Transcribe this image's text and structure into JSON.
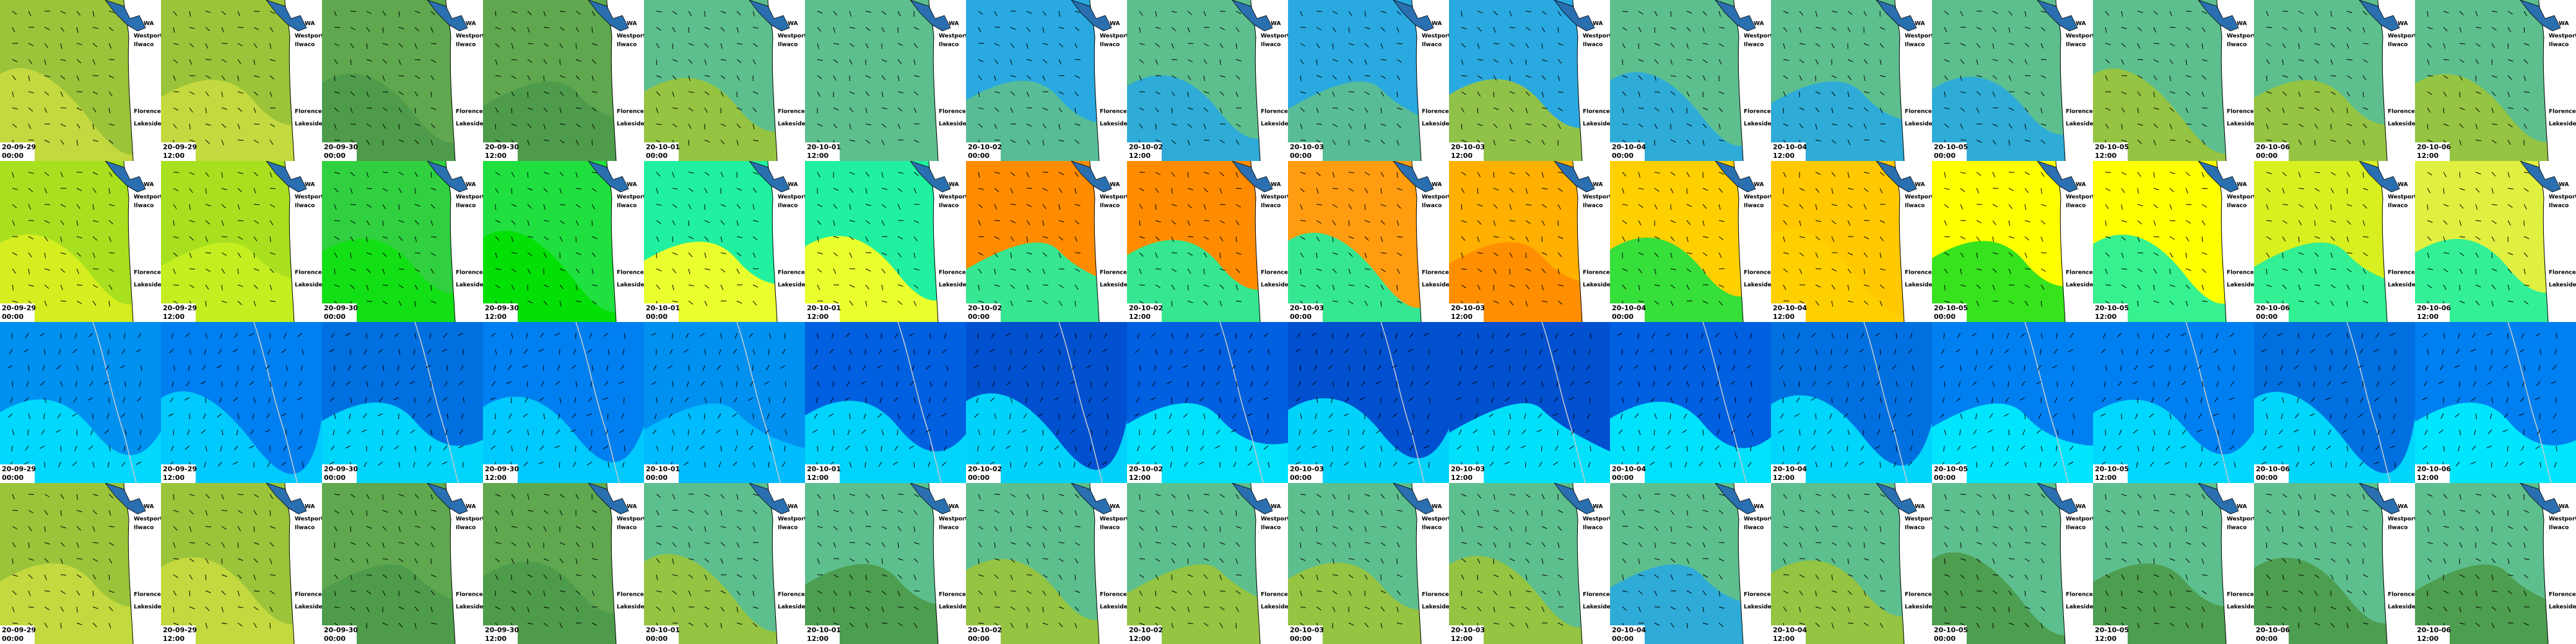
{
  "grid": {
    "places": [
      "WA",
      "Westport",
      "Ilwaco",
      "Florence",
      "Lakeside"
    ],
    "rows": [
      [
        {
          "date": "20-09-29",
          "time": "00:00"
        },
        {
          "date": "20-09-29",
          "time": "12:00"
        },
        {
          "date": "20-09-30",
          "time": "00:00"
        },
        {
          "date": "20-09-30",
          "time": "12:00"
        },
        {
          "date": "20-10-01",
          "time": "00:00"
        },
        {
          "date": "20-10-01",
          "time": "12:00"
        },
        {
          "date": "20-10-02",
          "time": "00:00"
        },
        {
          "date": "20-10-02",
          "time": "12:00"
        },
        {
          "date": "20-10-03",
          "time": "00:00"
        },
        {
          "date": "20-10-03",
          "time": "12:00"
        },
        {
          "date": "20-10-04",
          "time": "00:00"
        },
        {
          "date": "20-10-04",
          "time": "12:00"
        },
        {
          "date": "20-10-05",
          "time": "00:00"
        },
        {
          "date": "20-10-05",
          "time": "12:00"
        },
        {
          "date": "20-10-06",
          "time": "00:00"
        },
        {
          "date": "20-10-06",
          "time": "12:00"
        }
      ],
      [
        {
          "date": "20-09-29",
          "time": "00:00"
        },
        {
          "date": "20-09-29",
          "time": "12:00"
        },
        {
          "date": "20-09-30",
          "time": "00:00"
        },
        {
          "date": "20-09-30",
          "time": "12:00"
        },
        {
          "date": "20-10-01",
          "time": "00:00"
        },
        {
          "date": "20-10-01",
          "time": "12:00"
        },
        {
          "date": "20-10-02",
          "time": "00:00"
        },
        {
          "date": "20-10-02",
          "time": "12:00"
        },
        {
          "date": "20-10-03",
          "time": "00:00"
        },
        {
          "date": "20-10-03",
          "time": "12:00"
        },
        {
          "date": "20-10-04",
          "time": "00:00"
        },
        {
          "date": "20-10-04",
          "time": "12:00"
        },
        {
          "date": "20-10-05",
          "time": "00:00"
        },
        {
          "date": "20-10-05",
          "time": "12:00"
        },
        {
          "date": "20-10-06",
          "time": "00:00"
        },
        {
          "date": "20-10-06",
          "time": "12:00"
        }
      ],
      [
        {
          "date": "20-09-29",
          "time": "00:00"
        },
        {
          "date": "20-09-29",
          "time": "12:00"
        },
        {
          "date": "20-09-30",
          "time": "00:00"
        },
        {
          "date": "20-09-30",
          "time": "12:00"
        },
        {
          "date": "20-10-01",
          "time": "00:00"
        },
        {
          "date": "20-10-01",
          "time": "12:00"
        },
        {
          "date": "20-10-02",
          "time": "00:00"
        },
        {
          "date": "20-10-02",
          "time": "12:00"
        },
        {
          "date": "20-10-03",
          "time": "00:00"
        },
        {
          "date": "20-10-03",
          "time": "12:00"
        },
        {
          "date": "20-10-04",
          "time": "00:00"
        },
        {
          "date": "20-10-04",
          "time": "12:00"
        },
        {
          "date": "20-10-05",
          "time": "00:00"
        },
        {
          "date": "20-10-05",
          "time": "12:00"
        },
        {
          "date": "20-10-06",
          "time": "00:00"
        },
        {
          "date": "20-10-06",
          "time": "12:00"
        }
      ],
      [
        {
          "date": "20-09-29",
          "time": "00:00"
        },
        {
          "date": "20-09-29",
          "time": "12:00"
        },
        {
          "date": "20-09-30",
          "time": "00:00"
        },
        {
          "date": "20-09-30",
          "time": "12:00"
        },
        {
          "date": "20-10-01",
          "time": "00:00"
        },
        {
          "date": "20-10-01",
          "time": "12:00"
        },
        {
          "date": "20-10-02",
          "time": "00:00"
        },
        {
          "date": "20-10-02",
          "time": "12:00"
        },
        {
          "date": "20-10-03",
          "time": "00:00"
        },
        {
          "date": "20-10-03",
          "time": "12:00"
        },
        {
          "date": "20-10-04",
          "time": "00:00"
        },
        {
          "date": "20-10-04",
          "time": "12:00"
        },
        {
          "date": "20-10-05",
          "time": "00:00"
        },
        {
          "date": "20-10-05",
          "time": "12:00"
        },
        {
          "date": "20-10-06",
          "time": "00:00"
        },
        {
          "date": "20-10-06",
          "time": "12:00"
        }
      ]
    ]
  }
}
